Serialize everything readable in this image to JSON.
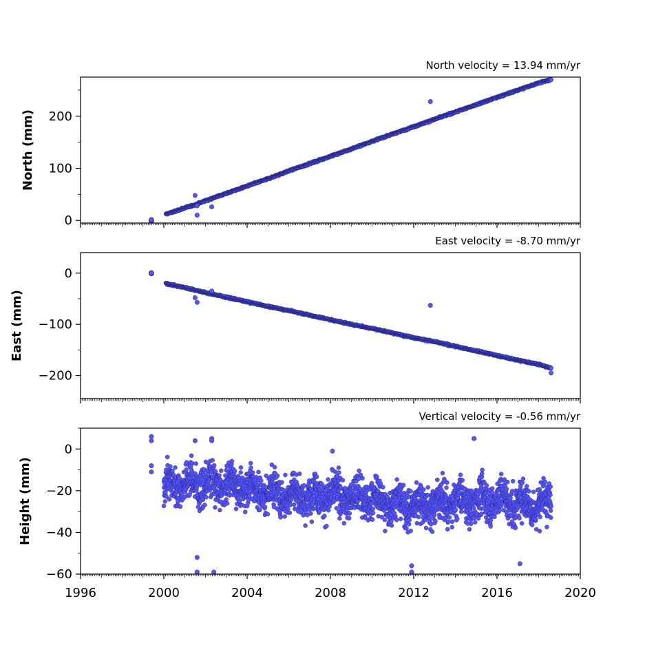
{
  "chart_data": [
    {
      "type": "scatter",
      "title": "North velocity = 13.94 mm/yr",
      "ylabel": "North (mm)",
      "xlim": [
        1996,
        2020
      ],
      "ylim": [
        -5,
        275
      ],
      "yticks": [
        0,
        100,
        200
      ],
      "series": [
        {
          "x": [
            1999.4,
            2000.1,
            2000.5,
            2001.0,
            2001.5,
            2002.0,
            2002.5,
            2003.0,
            2004.0,
            2005.0,
            2006.0,
            2007.0,
            2008.0,
            2009.0,
            2010.0,
            2011.0,
            2012.0,
            2013.0,
            2014.0,
            2015.0,
            2016.0,
            2017.0,
            2018.0,
            2018.6
          ],
          "y": [
            0,
            12,
            17,
            24,
            30,
            38,
            45,
            52,
            66,
            80,
            95,
            109,
            123,
            137,
            152,
            166,
            180,
            194,
            208,
            222,
            236,
            250,
            264,
            270
          ]
        }
      ],
      "outliers": {
        "x": [
          2001.5,
          2001.6,
          2001.6,
          2002.3,
          2012.8
        ],
        "y": [
          48,
          28,
          10,
          26,
          228
        ]
      }
    },
    {
      "type": "scatter",
      "title": "East velocity = -8.70 mm/yr",
      "ylabel": "East (mm)",
      "xlim": [
        1996,
        2020
      ],
      "ylim": [
        -245,
        40
      ],
      "yticks": [
        0,
        -100,
        -200
      ],
      "series": [
        {
          "x": [
            1999.4,
            2000.1,
            2000.5,
            2001.0,
            2001.5,
            2002.0,
            2003.0,
            2004.0,
            2005.0,
            2006.0,
            2007.0,
            2008.0,
            2009.0,
            2010.0,
            2011.0,
            2012.0,
            2013.0,
            2014.0,
            2015.0,
            2016.0,
            2017.0,
            2018.0,
            2018.6
          ],
          "y": [
            0,
            -20,
            -24,
            -28,
            -33,
            -38,
            -47,
            -56,
            -65,
            -73,
            -82,
            -91,
            -100,
            -108,
            -117,
            -126,
            -134,
            -143,
            -152,
            -161,
            -170,
            -178,
            -186
          ]
        }
      ],
      "outliers": {
        "x": [
          2001.5,
          2001.6,
          2002.3,
          2012.8,
          2018.6
        ],
        "y": [
          -48,
          -57,
          -35,
          -63,
          -195
        ]
      }
    },
    {
      "type": "scatter",
      "title": "Vertical velocity = -0.56 mm/yr",
      "ylabel": "Height (mm)",
      "xlabel": "",
      "xlim": [
        1996,
        2020
      ],
      "xticks": [
        1996,
        2000,
        2004,
        2008,
        2012,
        2016,
        2020
      ],
      "ylim": [
        -60,
        10
      ],
      "yticks": [
        0,
        -20,
        -40,
        -60
      ],
      "series": [
        {
          "x": [
            2000.0,
            2001.0,
            2002.0,
            2003.0,
            2004.0,
            2005.0,
            2006.0,
            2007.0,
            2008.0,
            2009.0,
            2010.0,
            2011.0,
            2012.0,
            2013.0,
            2014.0,
            2015.0,
            2016.0,
            2017.0,
            2018.0,
            2018.6
          ],
          "y": [
            -17,
            -16,
            -17,
            -17,
            -18,
            -21,
            -22,
            -22,
            -22,
            -23,
            -24,
            -26,
            -27,
            -26,
            -25,
            -25,
            -24,
            -26,
            -27,
            -25
          ]
        }
      ],
      "outliers": {
        "x": [
          1999.4,
          1999.4,
          1999.4,
          1999.4,
          2001.5,
          2001.6,
          2001.6,
          2002.3,
          2002.3,
          2002.4,
          2008.1,
          2011.9,
          2011.9,
          2014.9,
          2017.1
        ],
        "y": [
          6,
          4,
          -8,
          -11,
          4,
          -52,
          -59,
          5,
          4,
          -59,
          -1,
          -56,
          -59,
          5,
          -55
        ]
      }
    }
  ],
  "colors": {
    "marker_fill": "#5555ff",
    "marker_edge": "#1a1a66",
    "axis": "#000000"
  }
}
